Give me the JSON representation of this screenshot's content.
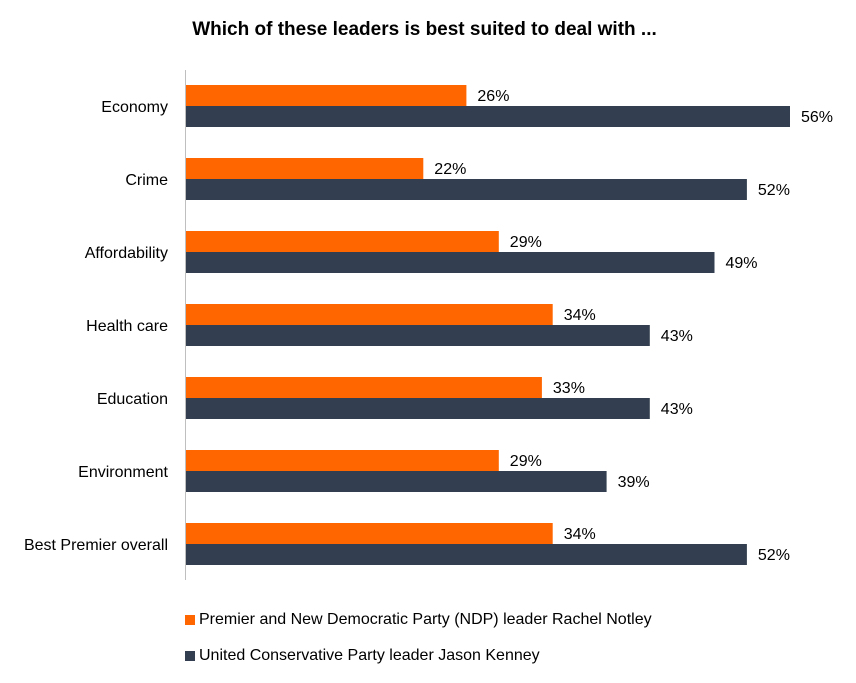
{
  "chart_data": {
    "type": "bar",
    "orientation": "horizontal",
    "title": "Which of these leaders is best suited to deal with ...",
    "categories": [
      "Economy",
      "Crime",
      "Affordability",
      "Health care",
      "Education",
      "Environment",
      "Best Premier overall"
    ],
    "series": [
      {
        "name": "Premier and New Democratic Party (NDP) leader Rachel Notley",
        "color": "#ff6600",
        "values": [
          26,
          22,
          29,
          34,
          33,
          29,
          34
        ],
        "labels": [
          "26%",
          "22%",
          "29%",
          "34%",
          "33%",
          "29%",
          "34%"
        ]
      },
      {
        "name": "United Conservative Party leader Jason Kenney",
        "color": "#333f50",
        "values": [
          56,
          52,
          49,
          43,
          43,
          39,
          52
        ],
        "labels": [
          "56%",
          "52%",
          "49%",
          "43%",
          "43%",
          "39%",
          "52%"
        ]
      }
    ],
    "value_unit": "%",
    "xlim": [
      0,
      56
    ],
    "grid": false,
    "legend_position": "bottom-left"
  }
}
